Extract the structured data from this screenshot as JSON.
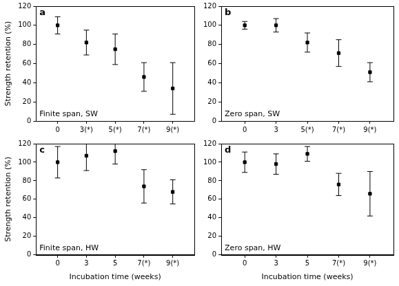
{
  "chart_data": [
    {
      "type": "scatter",
      "title": "a",
      "annotations": [
        "Finite span, SW"
      ],
      "y_label": "Strength retention (%)",
      "categories": [
        "0",
        "3(*)",
        "5(*)",
        "7(*)",
        "9(*)"
      ],
      "values": [
        100,
        82,
        75,
        46,
        34
      ],
      "errors": [
        9,
        13,
        16,
        15,
        27
      ],
      "color": "#000000",
      "marker": "square",
      "ylim": [
        0,
        120
      ],
      "yticks": [
        0,
        20,
        40,
        60,
        80,
        100,
        120
      ],
      "grid": false
    },
    {
      "type": "scatter",
      "title": "b",
      "annotations": [
        "Zero span, SW"
      ],
      "categories": [
        "0",
        "3",
        "5(*)",
        "7(*)",
        "9(*)"
      ],
      "values": [
        100,
        100,
        82,
        71,
        51
      ],
      "errors": [
        4,
        7,
        10,
        14,
        10
      ],
      "color": "#000000",
      "marker": "square",
      "ylim": [
        0,
        120
      ],
      "yticks": [
        0,
        20,
        40,
        60,
        80,
        100,
        120
      ],
      "grid": false
    },
    {
      "type": "scatter",
      "title": "c",
      "annotations": [
        "Finite span, HW"
      ],
      "y_label": "Strength retention (%)",
      "x_label": "Incubation time (weeks)",
      "categories": [
        "0",
        "3",
        "5",
        "7(*)",
        "9(*)"
      ],
      "values": [
        100,
        107,
        112,
        74,
        68
      ],
      "errors": [
        17,
        16,
        14,
        18,
        13
      ],
      "color": "#000000",
      "marker": "square",
      "ylim": [
        0,
        120
      ],
      "yticks": [
        0,
        20,
        40,
        60,
        80,
        100,
        120
      ],
      "grid": false
    },
    {
      "type": "scatter",
      "title": "d",
      "annotations": [
        "Zero span, HW"
      ],
      "x_label": "Incubation time (weeks)",
      "categories": [
        "0",
        "3",
        "5",
        "7(*)",
        "9(*)"
      ],
      "values": [
        100,
        98,
        109,
        76,
        66
      ],
      "errors": [
        11,
        11,
        8,
        12,
        24
      ],
      "color": "#000000",
      "marker": "square",
      "ylim": [
        0,
        120
      ],
      "yticks": [
        0,
        20,
        40,
        60,
        80,
        100,
        120
      ],
      "grid": false
    }
  ]
}
